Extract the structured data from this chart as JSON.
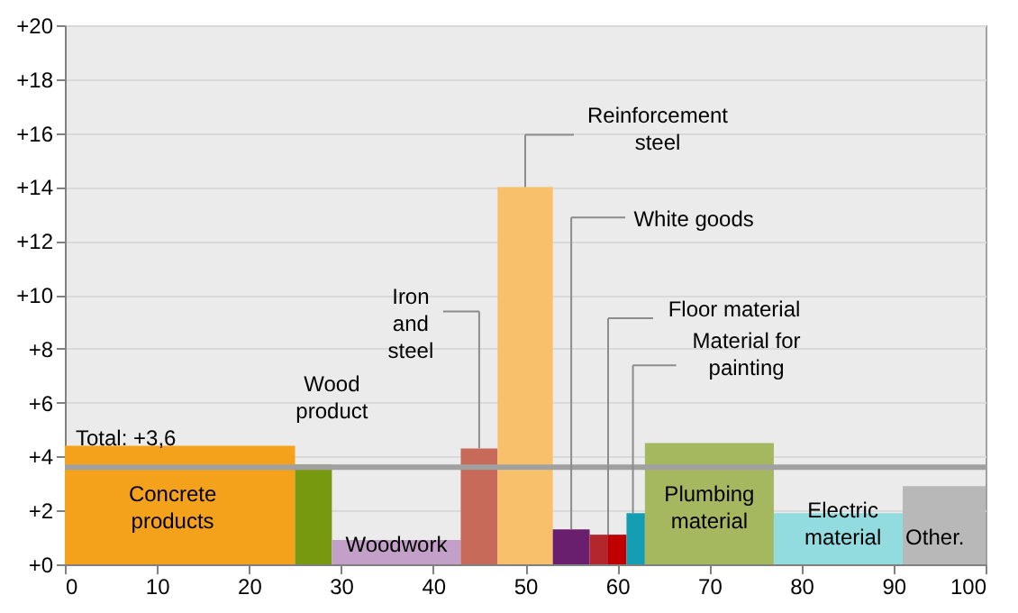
{
  "chart_data": {
    "type": "histogram",
    "bins": [
      0,
      25,
      29,
      43,
      47,
      53,
      57,
      59,
      61,
      63,
      77,
      91,
      100
    ],
    "values": [
      4.4,
      3.7,
      0.9,
      4.3,
      14,
      1.3,
      1.1,
      1.1,
      1.9,
      4.5,
      1.9,
      2.9
    ],
    "colors": [
      "#f4a21c",
      "#77990f",
      "#c3a0c8",
      "#c86a5a",
      "#f8c06a",
      "#6a1e6e",
      "#b3262c",
      "#c00000",
      "#149eb4",
      "#a5b860",
      "#92dcdf",
      "#b8b8b8"
    ],
    "xlim": [
      0,
      100
    ],
    "xticks": [
      0,
      10,
      20,
      30,
      40,
      50,
      60,
      70,
      80,
      90,
      100
    ],
    "ylim": [
      0,
      20
    ],
    "yticks": [
      {
        "value": 0,
        "label": "+0"
      },
      {
        "value": 2,
        "label": "+2"
      },
      {
        "value": 4,
        "label": "+4"
      },
      {
        "value": 6,
        "label": "+6"
      },
      {
        "value": 8,
        "label": "+8"
      },
      {
        "value": 10,
        "label": "+10"
      },
      {
        "value": 12,
        "label": "+12"
      },
      {
        "value": 14,
        "label": "+14"
      },
      {
        "value": 16,
        "label": "+16"
      },
      {
        "value": 18,
        "label": "+18"
      },
      {
        "value": 20,
        "label": "+20"
      }
    ],
    "grid": "y",
    "ref_lines": [
      {
        "axis": "y",
        "value": 3.6,
        "label": "Total: +3,6",
        "color": "#a0a0a0"
      }
    ],
    "annotations": [
      "Concrete\nproducts",
      "Wood\nproduct",
      "Woodwork",
      "Iron\nand\nsteel",
      "Reinforcement\nsteel",
      "White goods",
      "Floor material",
      "Material for\npainting",
      "Plumbing\nmaterial",
      "Electric\nmaterial",
      "Other."
    ]
  }
}
